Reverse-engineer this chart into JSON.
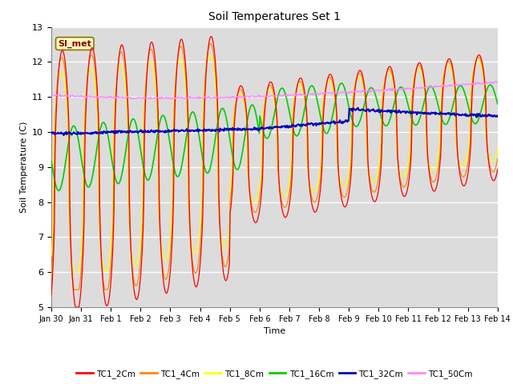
{
  "title": "Soil Temperatures Set 1",
  "xlabel": "Time",
  "ylabel": "Soil Temperature (C)",
  "ylim": [
    5.0,
    13.0
  ],
  "yticks": [
    5.0,
    6.0,
    7.0,
    8.0,
    9.0,
    10.0,
    11.0,
    12.0,
    13.0
  ],
  "date_labels": [
    "Jan 30",
    "Jan 31",
    "Feb 1",
    "Feb 2",
    "Feb 3",
    "Feb 4",
    "Feb 5",
    "Feb 6",
    "Feb 7",
    "Feb 8",
    "Feb 9",
    "Feb 10",
    "Feb 11",
    "Feb 12",
    "Feb 13",
    "Feb 14"
  ],
  "colors": {
    "TC1_2Cm": "#FF0000",
    "TC1_4Cm": "#FF8800",
    "TC1_8Cm": "#FFFF00",
    "TC1_16Cm": "#00CC00",
    "TC1_32Cm": "#0000BB",
    "TC1_50Cm": "#FF88FF"
  },
  "legend_label": "SI_met",
  "fig_facecolor": "#FFFFFF",
  "plot_facecolor": "#DCDCDC"
}
